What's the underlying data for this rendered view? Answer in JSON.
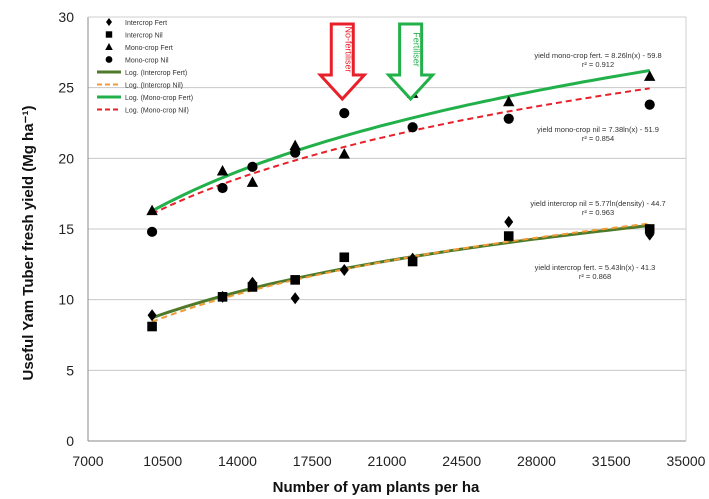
{
  "chart_data": {
    "type": "scatter",
    "title": "",
    "xlabel": "Number of yam plants per ha",
    "ylabel": "Useful Yam Tuber fresh yield (Mg ha⁻¹)",
    "xlim": [
      7000,
      35000
    ],
    "ylim": [
      0,
      30
    ],
    "x_ticks": [
      7000,
      10500,
      14000,
      17500,
      21000,
      24500,
      28000,
      31500,
      35000
    ],
    "y_ticks": [
      0,
      5,
      10,
      15,
      20,
      25,
      30
    ],
    "grid": "horizontal",
    "legend_position": "top-left",
    "series": [
      {
        "name": "Intercrop Fert",
        "marker": "diamond",
        "color": "#000000",
        "points": [
          [
            10000,
            8.9
          ],
          [
            13300,
            10.2
          ],
          [
            14700,
            11.2
          ],
          [
            16700,
            10.1
          ],
          [
            19000,
            12.1
          ],
          [
            22200,
            12.9
          ],
          [
            26700,
            15.5
          ],
          [
            33300,
            14.6
          ]
        ]
      },
      {
        "name": "Intercrop Nil",
        "marker": "square",
        "color": "#000000",
        "points": [
          [
            10000,
            8.1
          ],
          [
            13300,
            10.2
          ],
          [
            14700,
            10.9
          ],
          [
            16700,
            11.4
          ],
          [
            19000,
            13.0
          ],
          [
            22200,
            12.7
          ],
          [
            26700,
            14.5
          ],
          [
            33300,
            15.0
          ]
        ]
      },
      {
        "name": "Mono-crop Fert",
        "marker": "triangle",
        "color": "#000000",
        "points": [
          [
            10000,
            16.3
          ],
          [
            13300,
            19.1
          ],
          [
            14700,
            18.3
          ],
          [
            16700,
            20.9
          ],
          [
            19000,
            20.3
          ],
          [
            22200,
            24.6
          ],
          [
            26700,
            24.0
          ],
          [
            33300,
            25.8
          ]
        ]
      },
      {
        "name": "Mono-crop Nil",
        "marker": "circle",
        "color": "#000000",
        "points": [
          [
            10000,
            14.8
          ],
          [
            13300,
            17.9
          ],
          [
            14700,
            19.4
          ],
          [
            16700,
            20.4
          ],
          [
            19000,
            23.2
          ],
          [
            22200,
            22.2
          ],
          [
            26700,
            22.8
          ],
          [
            33300,
            23.8
          ]
        ]
      }
    ],
    "trendlines": [
      {
        "name": "Log. (Intercrop Fert)",
        "color": "#4e7a2a",
        "style": "solid",
        "a": 5.43,
        "b": -41.3,
        "x_range": [
          10000,
          33300
        ]
      },
      {
        "name": "Log. (Intercrop Nil)",
        "color": "#f39a35",
        "style": "dashed",
        "a": 5.77,
        "b": -44.7,
        "x_range": [
          10000,
          33300
        ]
      },
      {
        "name": "Log. (Mono-crop Fert)",
        "color": "#22b04a",
        "style": "solid",
        "a": 8.26,
        "b": -59.8,
        "x_range": [
          10000,
          33300
        ]
      },
      {
        "name": "Log. (Mono-crop Nil)",
        "color": "#e8202a",
        "style": "dashed",
        "a": 7.38,
        "b": -51.9,
        "x_range": [
          10000,
          33300
        ]
      }
    ],
    "annotations": [
      {
        "text_line1": "yield mono-crop fert. = 8.26ln(x) - 59.8",
        "text_line2": "r² = 0.912"
      },
      {
        "text_line1": "yield mono-crop nil = 7.38ln(x) - 51.9",
        "text_line2": "r² = 0.854"
      },
      {
        "text_line1": "yield intercrop nil = 5.77ln(density) - 44.7",
        "text_line2": "r² = 0.963"
      },
      {
        "text_line1": "yield intercrop fert. = 5.43ln(x) - 41.3",
        "text_line2": "r² = 0.868"
      }
    ],
    "arrows": [
      {
        "label": "No-fertiliser",
        "color": "#e8202a",
        "x": 19000
      },
      {
        "label": "Fertiliser",
        "color": "#22b04a",
        "x": 22200
      }
    ]
  }
}
